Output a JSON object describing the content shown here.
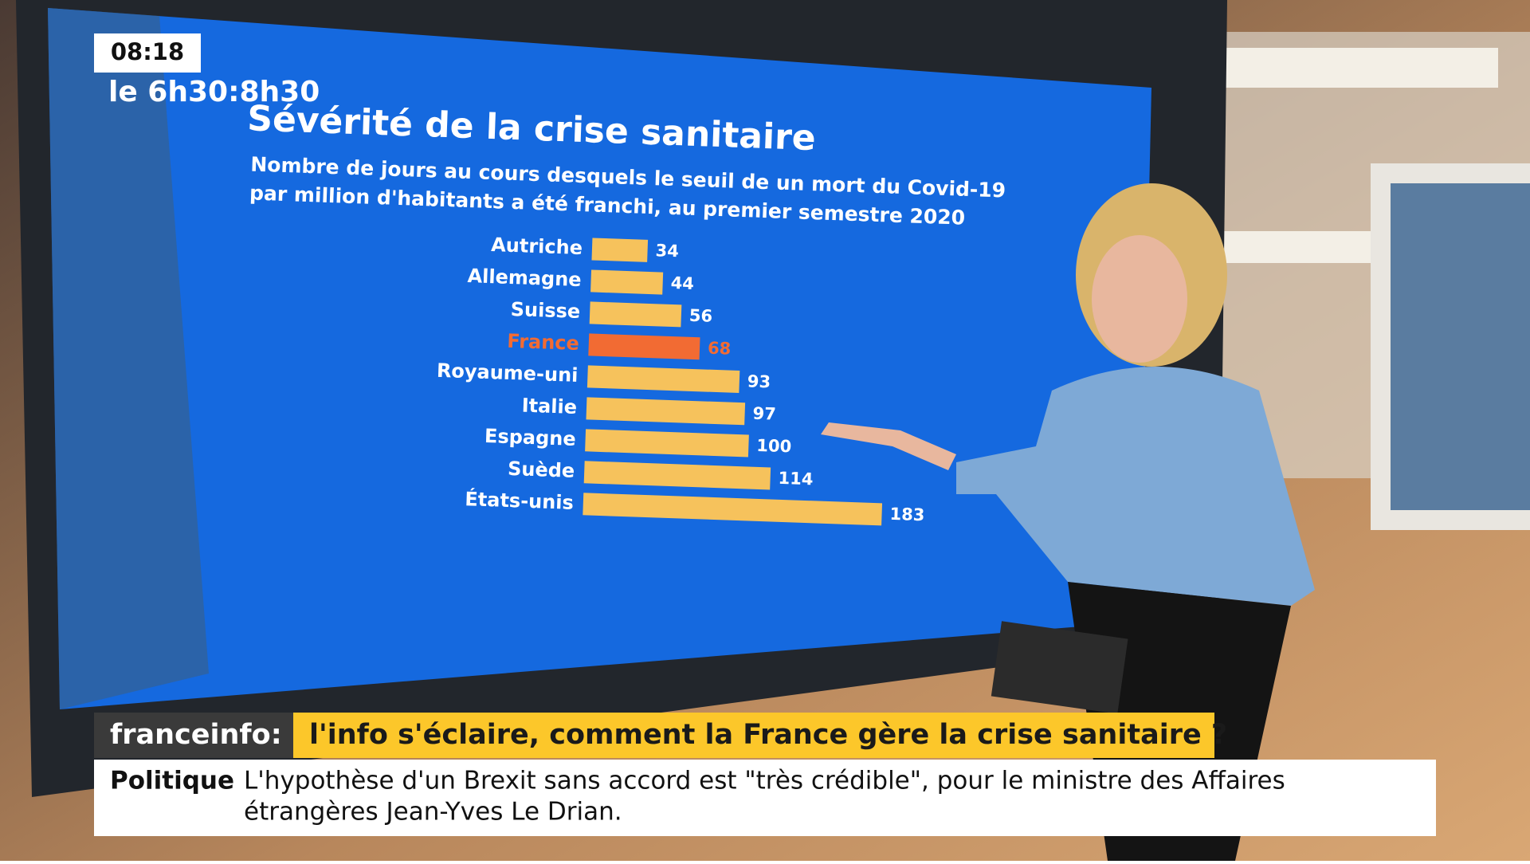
{
  "clock": "08:18",
  "show": "le 6h30:8h30",
  "chart_data": {
    "type": "bar",
    "orientation": "horizontal",
    "title": "Sévérité de la crise sanitaire",
    "subtitle": [
      "Nombre de jours au cours desquels le seuil de un mort du Covid-19",
      "par million d'habitants a été franchi, au premier semestre 2020"
    ],
    "categories": [
      "Autriche",
      "Allemagne",
      "Suisse",
      "France",
      "Royaume-uni",
      "Italie",
      "Espagne",
      "Suède",
      "États-unis"
    ],
    "values": [
      34,
      44,
      56,
      68,
      93,
      97,
      100,
      114,
      183
    ],
    "color": "#f6c25c",
    "highlight": 3,
    "highlight_color": "#f26b33"
  },
  "banner": {
    "brand": "franceinfo:",
    "headline": "l'info s'éclaire, comment la France gère la crise sanitaire ?"
  },
  "ticker": {
    "section": "Politique",
    "lines": [
      "L'hypothèse d'un Brexit sans accord est \"très crédible\", pour le ministre des Affaires",
      "étrangères Jean-Yves Le Drian."
    ]
  }
}
